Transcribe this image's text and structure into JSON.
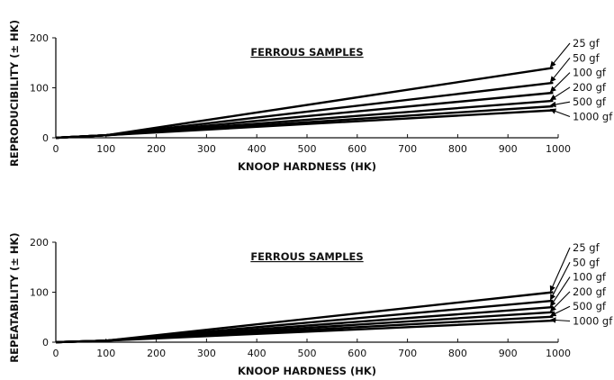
{
  "chart_data": [
    {
      "type": "line",
      "title": "FERROUS SAMPLES",
      "xlabel": "KNOOP HARDNESS (HK)",
      "ylabel": "REPRODUCIBILITY (± HK)",
      "xlim": [
        0,
        1000
      ],
      "ylim": [
        0,
        200
      ],
      "x_ticks": [
        "0",
        "100",
        "200",
        "300",
        "400",
        "500",
        "600",
        "700",
        "800",
        "900",
        "1000"
      ],
      "y_ticks": [
        "0",
        "100",
        "200"
      ],
      "grid": false,
      "legend": "right, labels with arrows",
      "series": [
        {
          "name": "25 gf",
          "points": [
            [
              0,
              0
            ],
            [
              100,
              5
            ],
            [
              990,
              140
            ]
          ]
        },
        {
          "name": "50 gf",
          "points": [
            [
              0,
              0
            ],
            [
              100,
              5
            ],
            [
              990,
              110
            ]
          ]
        },
        {
          "name": "100 gf",
          "points": [
            [
              0,
              0
            ],
            [
              100,
              5
            ],
            [
              990,
              90
            ]
          ]
        },
        {
          "name": "200 gf",
          "points": [
            [
              0,
              0
            ],
            [
              100,
              5
            ],
            [
              990,
              74
            ]
          ]
        },
        {
          "name": "500 gf",
          "points": [
            [
              0,
              0
            ],
            [
              100,
              5
            ],
            [
              990,
              63
            ]
          ]
        },
        {
          "name": "1000 gf",
          "points": [
            [
              0,
              0
            ],
            [
              100,
              5
            ],
            [
              990,
              55
            ]
          ]
        }
      ]
    },
    {
      "type": "line",
      "title": "FERROUS SAMPLES",
      "xlabel": "KNOOP HARDNESS (HK)",
      "ylabel": "REPEATABILITY (± HK)",
      "xlim": [
        0,
        1000
      ],
      "ylim": [
        0,
        200
      ],
      "x_ticks": [
        "0",
        "100",
        "200",
        "300",
        "400",
        "500",
        "600",
        "700",
        "800",
        "900",
        "1000"
      ],
      "y_ticks": [
        "0",
        "100",
        "200"
      ],
      "grid": false,
      "legend": "right, labels with arrows",
      "series": [
        {
          "name": "25 gf",
          "points": [
            [
              0,
              0
            ],
            [
              100,
              3
            ],
            [
              990,
              100
            ]
          ]
        },
        {
          "name": "50 gf",
          "points": [
            [
              0,
              0
            ],
            [
              100,
              3
            ],
            [
              990,
              83
            ]
          ]
        },
        {
          "name": "100 gf",
          "points": [
            [
              0,
              0
            ],
            [
              100,
              3
            ],
            [
              990,
              70
            ]
          ]
        },
        {
          "name": "200 gf",
          "points": [
            [
              0,
              0
            ],
            [
              100,
              3
            ],
            [
              990,
              60
            ]
          ]
        },
        {
          "name": "500 gf",
          "points": [
            [
              0,
              0
            ],
            [
              100,
              3
            ],
            [
              990,
              51
            ]
          ]
        },
        {
          "name": "1000 gf",
          "points": [
            [
              0,
              0
            ],
            [
              100,
              3
            ],
            [
              990,
              43
            ]
          ]
        }
      ]
    }
  ],
  "colors": {
    "line": "#000000",
    "axis": "#111111",
    "text": "#111111",
    "background": "#ffffff"
  }
}
